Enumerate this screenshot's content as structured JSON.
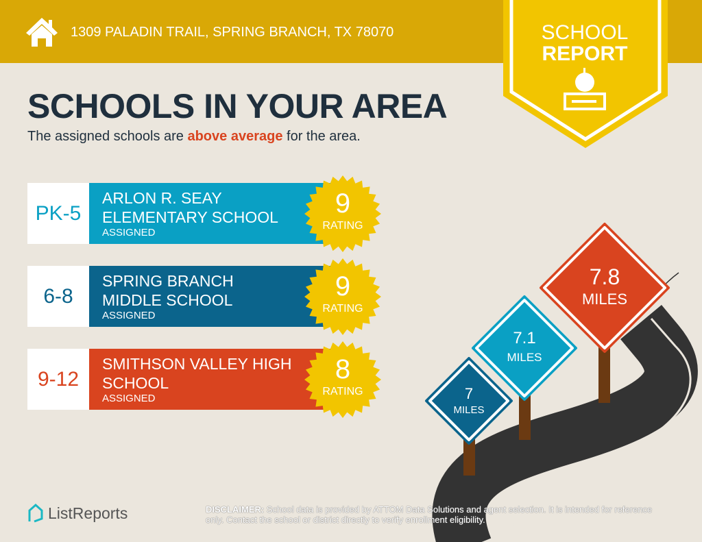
{
  "header": {
    "address": "1309 PALADIN TRAIL, SPRING BRANCH, TX 78070",
    "ribbon_line1": "SCHOOL",
    "ribbon_line2": "REPORT"
  },
  "main": {
    "title": "SCHOOLS IN YOUR AREA",
    "subtitle_pre": "The assigned schools are ",
    "subtitle_em": "above average",
    "subtitle_post": " for the area."
  },
  "schools": [
    {
      "grade": "PK-5",
      "name_line1": "ARLON R. SEAY",
      "name_line2": "ELEMENTARY SCHOOL",
      "status": "ASSIGNED",
      "rating": "9",
      "rating_label": "RATING",
      "color": "#0aa0c4"
    },
    {
      "grade": "6-8",
      "name_line1": "SPRING BRANCH",
      "name_line2": "MIDDLE SCHOOL",
      "status": "ASSIGNED",
      "rating": "9",
      "rating_label": "RATING",
      "color": "#0b648c"
    },
    {
      "grade": "9-12",
      "name_line1": "SMITHSON VALLEY HIGH",
      "name_line2": "SCHOOL",
      "status": "ASSIGNED",
      "rating": "8",
      "rating_label": "RATING",
      "color": "#d9441f"
    }
  ],
  "signs": [
    {
      "distance": "7",
      "unit": "MILES",
      "color": "#0b648c"
    },
    {
      "distance": "7.1",
      "unit": "MILES",
      "color": "#0aa0c4"
    },
    {
      "distance": "7.8",
      "unit": "MILES",
      "color": "#d9441f"
    }
  ],
  "footer": {
    "logo": "ListReports",
    "disclaimer_label": "DISCLAIMER:",
    "disclaimer": " School data is provided by ATTOM Data Solutions and agent selection. It is intended for reference only. Contact the school or district directly to verify enrollment eligibility."
  },
  "colors": {
    "header": "#d9a806",
    "ribbon": "#f2c500",
    "title": "#1f2f3d",
    "badge": "#f2c500"
  }
}
